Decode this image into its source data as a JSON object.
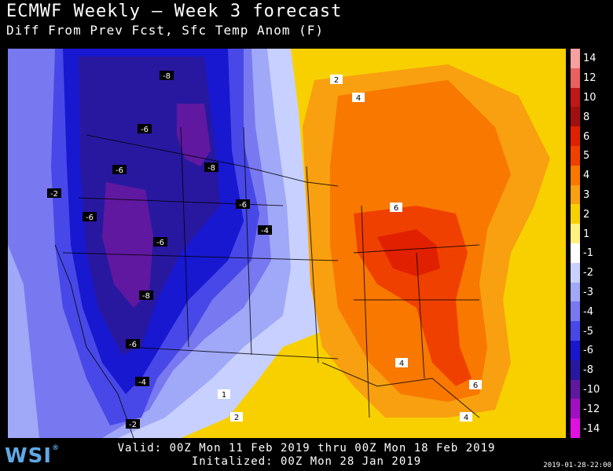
{
  "header": {
    "title": "ECMWF Weekly — Week 3 forecast",
    "subtitle": "Diff From Prev Fcst, Sfc Temp Anom (F)"
  },
  "footer": {
    "valid": "Valid: 00Z Mon 11 Feb 2019 thru 00Z Mon 18 Feb 2019",
    "initialized": "Initalized: 00Z Mon 28 Jan 2019",
    "timestamp": "2019-01-28-22:00"
  },
  "logo": {
    "text": "WSI",
    "mark": "®"
  },
  "legend": {
    "labels": [
      "14",
      "12",
      "10",
      "8",
      "6",
      "5",
      "4",
      "3",
      "2",
      "1",
      "-1",
      "-2",
      "-3",
      "-4",
      "-5",
      "-6",
      "-8",
      "-10",
      "-12",
      "-14"
    ],
    "colors": [
      "#f7a0a0",
      "#e86060",
      "#c01818",
      "#a01010",
      "#e02000",
      "#f04000",
      "#f87800",
      "#f8a010",
      "#f8d000",
      "#fff080",
      "#ffffff",
      "#c8d0ff",
      "#a0a8f8",
      "#7878f0",
      "#4848e8",
      "#1818d0",
      "#2818a0",
      "#6018a0",
      "#a010c0",
      "#e010e0"
    ]
  },
  "map": {
    "contour_labels": [
      "-8",
      "-6",
      "-6",
      "-8",
      "-6",
      "-2",
      "-6",
      "-6",
      "-4",
      "-8",
      "-6",
      "-4",
      "-2",
      "2",
      "4",
      "6",
      "4",
      "6",
      "4",
      "2",
      "1"
    ]
  }
}
